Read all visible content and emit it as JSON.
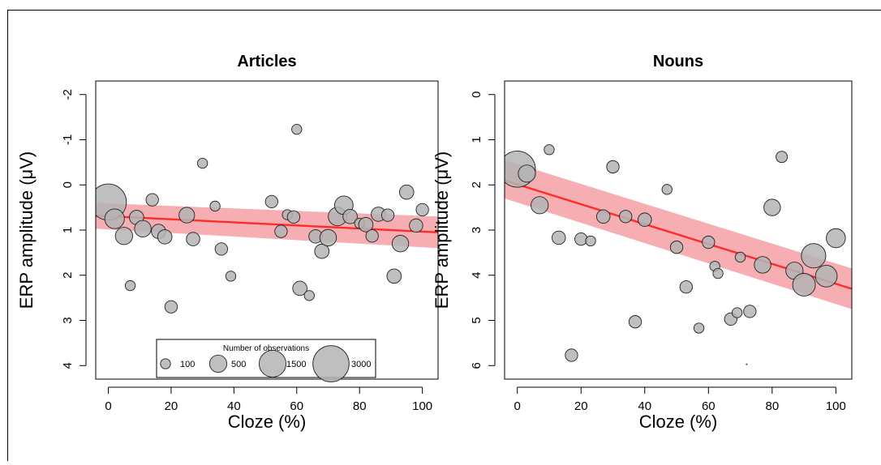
{
  "chart_data": [
    {
      "type": "scatter",
      "title": "Articles",
      "xlabel": "Cloze (%)",
      "ylabel": "ERP amplitude (μV)",
      "xlim": [
        -4,
        105
      ],
      "ylim": [
        -2.3,
        4.3
      ],
      "y_reversed": true,
      "xticks": [
        0,
        20,
        40,
        60,
        80,
        100
      ],
      "xtick_labels": [
        "0",
        "20",
        "40",
        "60",
        "80",
        "100"
      ],
      "yticks": [
        -2,
        -1,
        0,
        1,
        2,
        3,
        4
      ],
      "ytick_labels": [
        "-2",
        "-1",
        "0",
        "1",
        "2",
        "3",
        "4"
      ],
      "colors": {
        "points": "#b4b4b4",
        "fit_line": "#ff2b2b",
        "ci_band": "#f6a0a4"
      },
      "fit": {
        "x": [
          -4,
          105
        ],
        "y": [
          0.68,
          1.05
        ]
      },
      "ci": {
        "x": [
          -4,
          105
        ],
        "lower": [
          0.4,
          0.7
        ],
        "upper": [
          0.97,
          1.4
        ]
      },
      "points": [
        {
          "x": 0,
          "y": 0.38,
          "n": 3000
        },
        {
          "x": 2,
          "y": 0.75,
          "n": 700
        },
        {
          "x": 5,
          "y": 1.13,
          "n": 500
        },
        {
          "x": 7,
          "y": 2.23,
          "n": 100
        },
        {
          "x": 9,
          "y": 0.72,
          "n": 300
        },
        {
          "x": 11,
          "y": 0.97,
          "n": 450
        },
        {
          "x": 14,
          "y": 0.33,
          "n": 200
        },
        {
          "x": 16,
          "y": 1.03,
          "n": 300
        },
        {
          "x": 18,
          "y": 1.15,
          "n": 300
        },
        {
          "x": 20,
          "y": 2.7,
          "n": 200
        },
        {
          "x": 25,
          "y": 0.67,
          "n": 380
        },
        {
          "x": 27,
          "y": 1.2,
          "n": 250
        },
        {
          "x": 30,
          "y": -0.48,
          "n": 100
        },
        {
          "x": 34,
          "y": 0.47,
          "n": 100
        },
        {
          "x": 36,
          "y": 1.42,
          "n": 200
        },
        {
          "x": 39,
          "y": 2.02,
          "n": 100
        },
        {
          "x": 52,
          "y": 0.37,
          "n": 200
        },
        {
          "x": 55,
          "y": 1.03,
          "n": 200
        },
        {
          "x": 57,
          "y": 0.66,
          "n": 100
        },
        {
          "x": 59,
          "y": 0.71,
          "n": 200
        },
        {
          "x": 60,
          "y": -1.23,
          "n": 100
        },
        {
          "x": 61,
          "y": 2.29,
          "n": 300
        },
        {
          "x": 64,
          "y": 2.45,
          "n": 100
        },
        {
          "x": 66,
          "y": 1.14,
          "n": 250
        },
        {
          "x": 68,
          "y": 1.47,
          "n": 300
        },
        {
          "x": 70,
          "y": 1.17,
          "n": 450
        },
        {
          "x": 73,
          "y": 0.7,
          "n": 600
        },
        {
          "x": 75,
          "y": 0.45,
          "n": 600
        },
        {
          "x": 77,
          "y": 0.7,
          "n": 300
        },
        {
          "x": 80,
          "y": 0.85,
          "n": 100
        },
        {
          "x": 82,
          "y": 0.88,
          "n": 300
        },
        {
          "x": 84,
          "y": 1.13,
          "n": 200
        },
        {
          "x": 86,
          "y": 0.65,
          "n": 300
        },
        {
          "x": 89,
          "y": 0.67,
          "n": 200
        },
        {
          "x": 91,
          "y": 2.02,
          "n": 300
        },
        {
          "x": 93,
          "y": 1.3,
          "n": 450
        },
        {
          "x": 95,
          "y": 0.16,
          "n": 300
        },
        {
          "x": 98,
          "y": 0.9,
          "n": 250
        },
        {
          "x": 100,
          "y": 0.55,
          "n": 200
        }
      ],
      "size_legend": {
        "title": "Number of observations",
        "values": [
          100,
          500,
          1500,
          3000
        ],
        "labels": [
          "100",
          "500",
          "1500",
          "3000"
        ]
      }
    },
    {
      "type": "scatter",
      "title": "Nouns",
      "xlabel": "Cloze (%)",
      "ylabel": "ERP amplitude (μV)",
      "xlim": [
        -4,
        105
      ],
      "ylim": [
        -0.3,
        6.3
      ],
      "y_reversed": true,
      "xticks": [
        0,
        20,
        40,
        60,
        80,
        100
      ],
      "xtick_labels": [
        "0",
        "20",
        "40",
        "60",
        "80",
        "100"
      ],
      "yticks": [
        0,
        1,
        2,
        3,
        4,
        5,
        6
      ],
      "ytick_labels": [
        "0",
        "1",
        "2",
        "3",
        "4",
        "5",
        "6"
      ],
      "colors": {
        "points": "#b4b4b4",
        "fit_line": "#ff2b2b",
        "ci_band": "#f6a0a4"
      },
      "fit": {
        "x": [
          -4,
          105
        ],
        "y": [
          1.9,
          4.3
        ]
      },
      "ci": {
        "x": [
          -4,
          105
        ],
        "lower": [
          1.45,
          3.85
        ],
        "upper": [
          2.3,
          4.75
        ]
      },
      "points": [
        {
          "x": 0,
          "y": 1.65,
          "n": 3000
        },
        {
          "x": 3,
          "y": 1.75,
          "n": 500
        },
        {
          "x": 7,
          "y": 2.45,
          "n": 500
        },
        {
          "x": 10,
          "y": 1.22,
          "n": 100
        },
        {
          "x": 13,
          "y": 3.17,
          "n": 250
        },
        {
          "x": 17,
          "y": 5.77,
          "n": 200
        },
        {
          "x": 20,
          "y": 3.2,
          "n": 200
        },
        {
          "x": 23,
          "y": 3.24,
          "n": 100
        },
        {
          "x": 27,
          "y": 2.7,
          "n": 250
        },
        {
          "x": 30,
          "y": 1.6,
          "n": 200
        },
        {
          "x": 34,
          "y": 2.7,
          "n": 200
        },
        {
          "x": 37,
          "y": 5.03,
          "n": 200
        },
        {
          "x": 40,
          "y": 2.77,
          "n": 250
        },
        {
          "x": 47,
          "y": 2.1,
          "n": 100
        },
        {
          "x": 50,
          "y": 3.38,
          "n": 200
        },
        {
          "x": 53,
          "y": 4.26,
          "n": 200
        },
        {
          "x": 57,
          "y": 5.17,
          "n": 100
        },
        {
          "x": 60,
          "y": 3.27,
          "n": 200
        },
        {
          "x": 62,
          "y": 3.8,
          "n": 100
        },
        {
          "x": 63,
          "y": 3.96,
          "n": 100
        },
        {
          "x": 67,
          "y": 4.97,
          "n": 200
        },
        {
          "x": 69,
          "y": 4.83,
          "n": 100
        },
        {
          "x": 70,
          "y": 3.6,
          "n": 100
        },
        {
          "x": 72,
          "y": 5.97,
          "n": 5
        },
        {
          "x": 73,
          "y": 4.8,
          "n": 200
        },
        {
          "x": 77,
          "y": 3.77,
          "n": 450
        },
        {
          "x": 80,
          "y": 2.5,
          "n": 450
        },
        {
          "x": 83,
          "y": 1.38,
          "n": 150
        },
        {
          "x": 87,
          "y": 3.9,
          "n": 500
        },
        {
          "x": 90,
          "y": 4.21,
          "n": 1000
        },
        {
          "x": 93,
          "y": 3.57,
          "n": 1200
        },
        {
          "x": 97,
          "y": 4.02,
          "n": 900
        },
        {
          "x": 100,
          "y": 3.18,
          "n": 650
        }
      ]
    }
  ]
}
